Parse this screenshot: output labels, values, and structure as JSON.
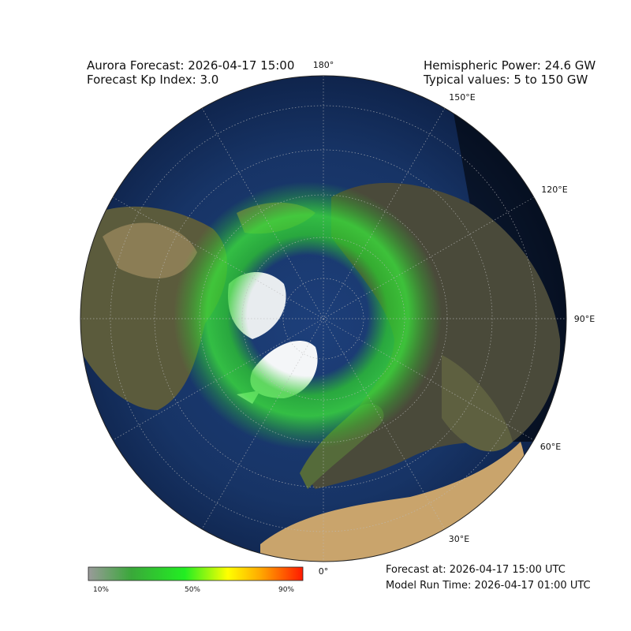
{
  "header": {
    "title": "Aurora Forecast: 2026-04-17 15:00",
    "kp": "Forecast Kp Index: 3.0",
    "power": "Hemispheric Power: 24.6 GW",
    "typical": "Typical values: 5 to 150 GW"
  },
  "longitude_labels": [
    "180°",
    "150°E",
    "120°E",
    "90°E",
    "60°E",
    "30°E",
    "0°"
  ],
  "colorbar": {
    "ticks": [
      "10%",
      "50%",
      "90%"
    ]
  },
  "footer": {
    "forecast_at": "Forecast at: 2026-04-17 15:00 UTC",
    "model_run": "Model Run Time: 2026-04-17 01:00 UTC"
  }
}
